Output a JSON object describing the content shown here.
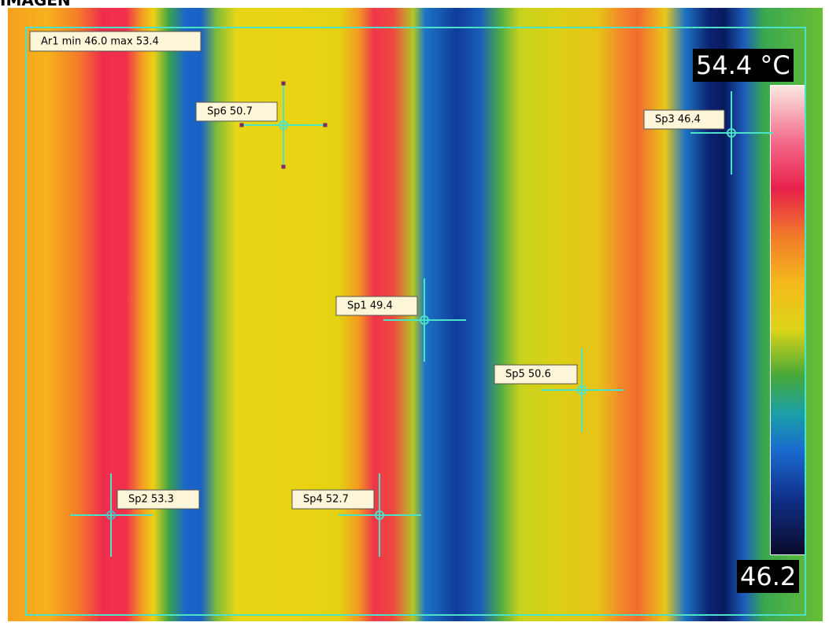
{
  "header": {
    "title": "IMAGEN"
  },
  "area": {
    "label": "Ar1 min 46.0 max 53.4"
  },
  "spots": [
    {
      "label": "Sp6 50.7"
    },
    {
      "label": "Sp3 46.4"
    },
    {
      "label": "Sp1 49.4"
    },
    {
      "label": "Sp5 50.6"
    },
    {
      "label": "Sp2 53.3"
    },
    {
      "label": "Sp4 52.7"
    }
  ],
  "scale": {
    "max_label": "54.4 °C",
    "min_label": "46.2"
  }
}
